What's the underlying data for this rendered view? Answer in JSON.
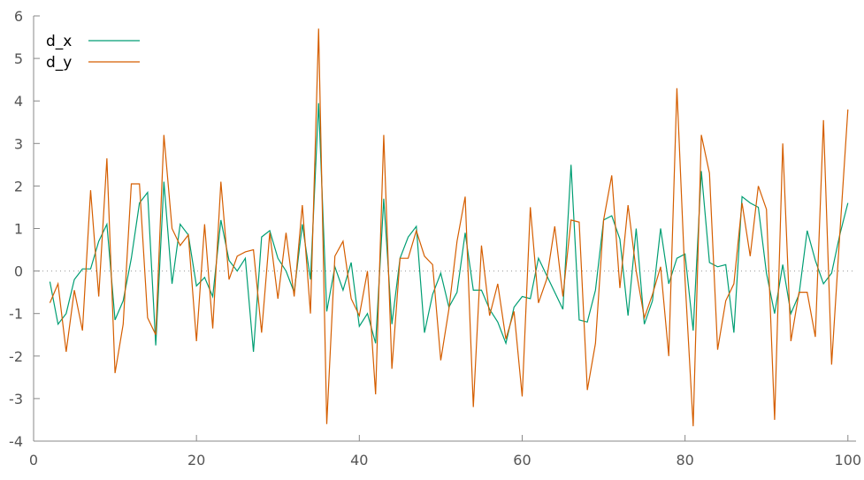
{
  "chart_data": {
    "type": "line",
    "title": "",
    "xlabel": "",
    "ylabel": "",
    "xlim": [
      0,
      101
    ],
    "ylim": [
      -4,
      6
    ],
    "x_ticks": [
      0,
      20,
      40,
      60,
      80,
      100
    ],
    "y_ticks": [
      -4,
      -3,
      -2,
      -1,
      0,
      1,
      2,
      3,
      4,
      5,
      6
    ],
    "zero_line": "dotted",
    "grid": false,
    "legend_position": "top-left",
    "x": [
      2,
      3,
      4,
      5,
      6,
      7,
      8,
      9,
      10,
      11,
      12,
      13,
      14,
      15,
      16,
      17,
      18,
      19,
      20,
      21,
      22,
      23,
      24,
      25,
      26,
      27,
      28,
      29,
      30,
      31,
      32,
      33,
      34,
      35,
      36,
      37,
      38,
      39,
      40,
      41,
      42,
      43,
      44,
      45,
      46,
      47,
      48,
      49,
      50,
      51,
      52,
      53,
      54,
      55,
      56,
      57,
      58,
      59,
      60,
      61,
      62,
      63,
      64,
      65,
      66,
      67,
      68,
      69,
      70,
      71,
      72,
      73,
      74,
      75,
      76,
      77,
      78,
      79,
      80,
      81,
      82,
      83,
      84,
      85,
      86,
      87,
      88,
      89,
      90,
      91,
      92,
      93,
      94,
      95,
      96,
      97,
      98,
      99,
      100
    ],
    "series": [
      {
        "name": "d_x",
        "color": "#009e73",
        "values": [
          -0.25,
          -1.25,
          -1.0,
          -0.2,
          0.05,
          0.05,
          0.7,
          1.1,
          -1.15,
          -0.7,
          0.3,
          1.6,
          1.85,
          -1.75,
          2.1,
          -0.3,
          1.1,
          0.85,
          -0.35,
          -0.15,
          -0.6,
          1.2,
          0.25,
          0.0,
          0.3,
          -1.9,
          0.8,
          0.95,
          0.3,
          0.0,
          -0.5,
          1.1,
          -0.2,
          3.95,
          -0.95,
          0.1,
          -0.45,
          0.2,
          -1.3,
          -1.0,
          -1.7,
          1.7,
          -1.25,
          0.3,
          0.8,
          1.05,
          -1.45,
          -0.55,
          -0.05,
          -0.85,
          -0.5,
          0.9,
          -0.45,
          -0.45,
          -0.9,
          -1.2,
          -1.7,
          -0.85,
          -0.6,
          -0.65,
          0.3,
          -0.1,
          -0.5,
          -0.9,
          2.5,
          -1.15,
          -1.2,
          -0.45,
          1.2,
          1.3,
          0.75,
          -1.05,
          1.0,
          -1.25,
          -0.7,
          1.0,
          -0.3,
          0.3,
          0.4,
          -1.4,
          2.35,
          0.2,
          0.1,
          0.15,
          -1.45,
          1.75,
          1.6,
          1.5,
          -0.05,
          -1.0,
          0.15,
          -1.0,
          -0.55,
          0.95,
          0.25,
          -0.3,
          -0.05,
          0.85,
          1.6
        ]
      },
      {
        "name": "d_y",
        "color": "#d55e00",
        "values": [
          -0.75,
          -0.3,
          -1.9,
          -0.45,
          -1.4,
          1.9,
          -0.6,
          2.65,
          -2.4,
          -1.25,
          2.05,
          2.05,
          -1.1,
          -1.5,
          3.2,
          1.0,
          0.6,
          0.85,
          -1.65,
          1.1,
          -1.35,
          2.1,
          -0.2,
          0.35,
          0.45,
          0.5,
          -1.45,
          0.9,
          -0.65,
          0.9,
          -0.6,
          1.55,
          -1.0,
          5.7,
          -3.6,
          0.35,
          0.7,
          -0.65,
          -1.05,
          0.0,
          -2.9,
          3.2,
          -2.3,
          0.3,
          0.3,
          0.95,
          0.35,
          0.15,
          -2.1,
          -0.9,
          0.7,
          1.75,
          -3.2,
          0.6,
          -1.05,
          -0.3,
          -1.6,
          -0.95,
          -2.95,
          1.5,
          -0.75,
          -0.2,
          1.05,
          -0.6,
          1.2,
          1.15,
          -2.8,
          -1.7,
          1.2,
          2.25,
          -0.4,
          1.55,
          0.0,
          -1.1,
          -0.55,
          0.1,
          -2.0,
          4.3,
          -0.2,
          -3.65,
          3.2,
          2.3,
          -1.85,
          -0.7,
          -0.3,
          1.6,
          0.35,
          2.0,
          1.45,
          -3.5,
          3.0,
          -1.65,
          -0.5,
          -0.5,
          -1.55,
          3.55,
          -2.2,
          0.85,
          3.8
        ]
      }
    ]
  }
}
